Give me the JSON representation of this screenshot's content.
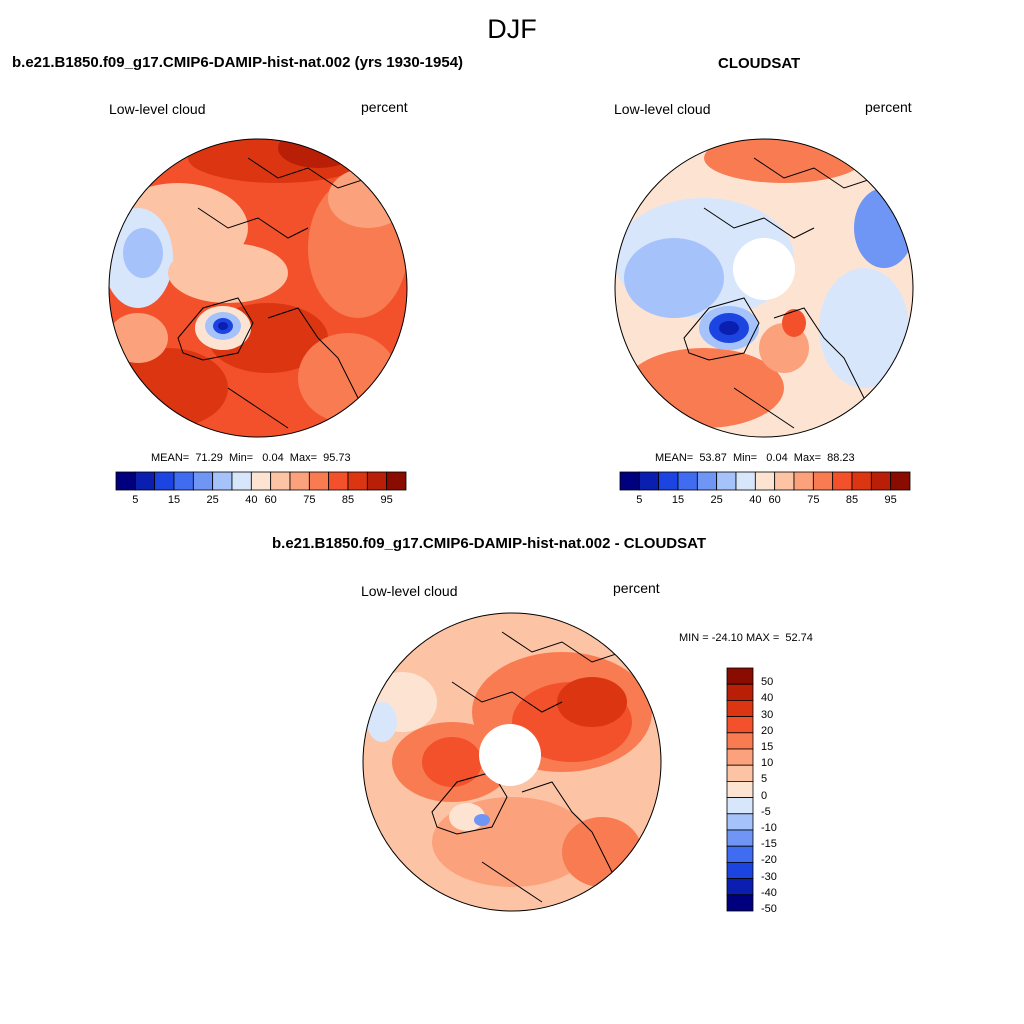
{
  "figure": {
    "title": "DJF"
  },
  "panels": [
    {
      "title": "b.e21.B1850.f09_g17.CMIP6-DAMIP-hist-nat.002 (yrs 1930-1954)",
      "left_label": "Low-level cloud",
      "right_label": "percent",
      "stats": "MEAN=  71.29  Min=   0.04  Max=  95.73",
      "mean": 71.29,
      "min": 0.04,
      "max": 95.73,
      "pole_hole": false
    },
    {
      "title": "CLOUDSAT",
      "left_label": "Low-level cloud",
      "right_label": "percent",
      "stats": "MEAN=  53.87  Min=   0.04  Max=  88.23",
      "mean": 53.87,
      "min": 0.04,
      "max": 88.23,
      "pole_hole": true
    },
    {
      "title": "b.e21.B1850.f09_g17.CMIP6-DAMIP-hist-nat.002 - CLOUDSAT",
      "left_label": "Low-level cloud",
      "right_label": "percent",
      "stats": "MIN = -24.10 MAX =  52.74",
      "min": -24.1,
      "max": 52.74,
      "pole_hole": true
    }
  ],
  "colorbar_abs": {
    "colors": [
      "#00007f",
      "#0a1fb0",
      "#1c44e0",
      "#3f6cf0",
      "#6f95f5",
      "#a6c2fa",
      "#d8e6fc",
      "#fde4d2",
      "#fcc3a5",
      "#fba27c",
      "#f97b52",
      "#f2512b",
      "#dc3512",
      "#b81f06",
      "#8a0c00"
    ],
    "tick_labels": [
      "5",
      "15",
      "25",
      "40",
      "60",
      "75",
      "85",
      "95"
    ]
  },
  "colorbar_diff": {
    "colors": [
      "#8a0c00",
      "#b81f06",
      "#dc3512",
      "#f2512b",
      "#f97b52",
      "#fba27c",
      "#fcc3a5",
      "#fde4d2",
      "#d8e6fc",
      "#a6c2fa",
      "#6f95f5",
      "#3f6cf0",
      "#1c44e0",
      "#0a1fb0",
      "#00007f"
    ],
    "tick_labels": [
      "50",
      "40",
      "30",
      "20",
      "15",
      "10",
      "5",
      "0",
      "-5",
      "-10",
      "-15",
      "-20",
      "-30",
      "-40",
      "-50"
    ]
  }
}
